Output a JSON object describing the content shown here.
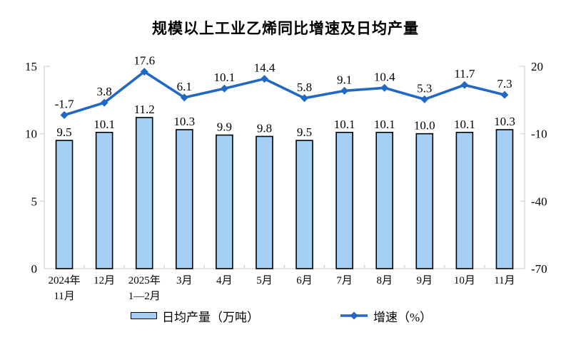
{
  "title": "规模以上工业乙烯同比增速及日均产量",
  "colors": {
    "bar_fill": "#A5CFF5",
    "bar_border": "#000000",
    "line": "#2268C3",
    "axis": "#D4D4D4",
    "text": "#000000"
  },
  "legend": {
    "bar_label": "日均产量（万吨）",
    "line_label": "增速（%）"
  },
  "chart_data": {
    "type": "bar",
    "title": "规模以上工业乙烯同比增速及日均产量",
    "categories": [
      "2024年\n11月",
      "12月",
      "2025年\n1—2月",
      "3月",
      "4月",
      "5月",
      "6月",
      "7月",
      "8月",
      "9月",
      "10月",
      "11月"
    ],
    "series": [
      {
        "name": "日均产量（万吨）",
        "type": "bar",
        "axis": "left",
        "values": [
          9.5,
          10.1,
          11.2,
          10.3,
          9.9,
          9.8,
          9.5,
          10.1,
          10.1,
          10.0,
          10.1,
          10.3
        ]
      },
      {
        "name": "增速（%）",
        "type": "line",
        "axis": "right",
        "values": [
          -1.7,
          3.8,
          17.6,
          6.1,
          10.1,
          14.4,
          5.8,
          9.1,
          10.4,
          5.3,
          11.7,
          7.3
        ]
      }
    ],
    "left_axis": {
      "label": "",
      "ticks": [
        0,
        5,
        10,
        15
      ],
      "range": [
        0,
        15
      ]
    },
    "right_axis": {
      "label": "",
      "ticks": [
        20,
        -10,
        -40,
        -70
      ],
      "range": [
        -70,
        20
      ]
    },
    "grid": false,
    "legend_position": "bottom",
    "data_labels": true,
    "label_decimals": 1
  }
}
